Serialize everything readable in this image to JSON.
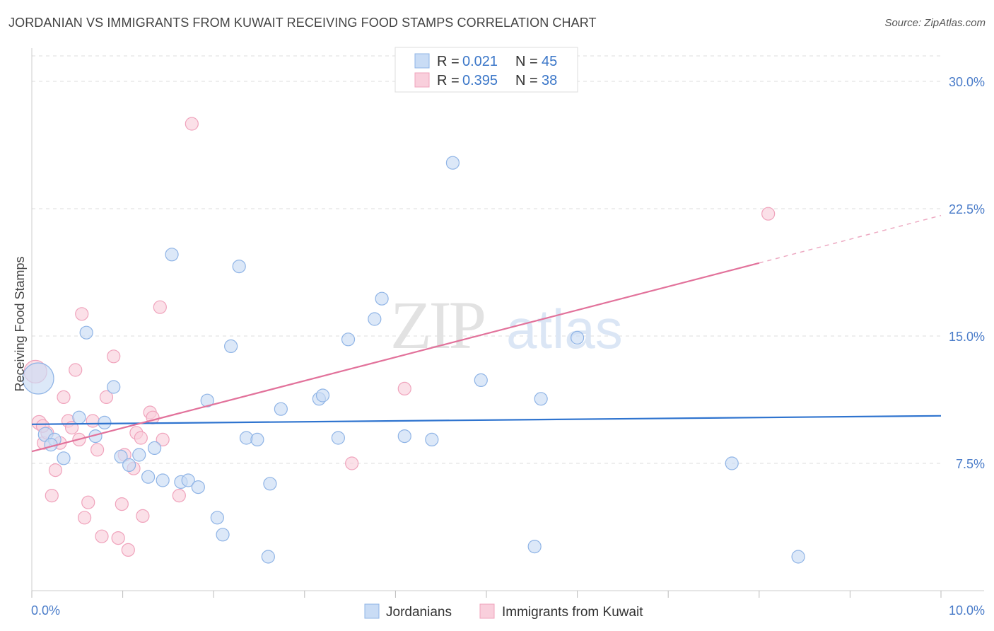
{
  "title": "JORDANIAN VS IMMIGRANTS FROM KUWAIT RECEIVING FOOD STAMPS CORRELATION CHART",
  "source": "Source: ZipAtlas.com",
  "watermark": {
    "zip": "ZIP",
    "atlas": "atlas"
  },
  "colors": {
    "blue_fill": "#c9dcf5",
    "blue_stroke": "#8fb4e6",
    "blue_line": "#2f74cf",
    "pink_fill": "#f9cfdc",
    "pink_stroke": "#f0a3bc",
    "pink_line": "#e2729b",
    "grid": "#dddddd",
    "tick_label": "#4a7cc9"
  },
  "legend": {
    "rows": [
      {
        "r_label": "R = ",
        "r_value": "0.021",
        "n_label": "N = ",
        "n_value": "45"
      },
      {
        "r_label": "R = ",
        "r_value": "0.395",
        "n_label": "N = ",
        "n_value": "38"
      }
    ]
  },
  "chart_data": {
    "type": "scatter",
    "xlabel": "",
    "ylabel": "Receiving Food Stamps",
    "xlim": [
      0,
      10
    ],
    "ylim": [
      0,
      31.5
    ],
    "x_tick_labels": [
      "0.0%",
      "10.0%"
    ],
    "y_ticks": [
      7.5,
      15.0,
      22.5,
      30.0
    ],
    "y_tick_labels": [
      "7.5%",
      "15.0%",
      "22.5%",
      "30.0%"
    ],
    "grid": true,
    "legend_position": "top-center",
    "series": [
      {
        "name": "Jordanians",
        "color": "#c9dcf5",
        "trend": {
          "x": [
            0,
            10
          ],
          "y": [
            9.8,
            10.3
          ]
        },
        "points": [
          [
            0.07,
            12.5,
            22
          ],
          [
            0.15,
            9.2,
            10
          ],
          [
            0.25,
            8.9,
            9
          ],
          [
            0.35,
            7.8,
            9
          ],
          [
            0.52,
            10.2,
            9
          ],
          [
            0.6,
            15.2,
            9
          ],
          [
            0.7,
            9.1,
            9
          ],
          [
            0.8,
            9.9,
            9
          ],
          [
            0.9,
            12.0,
            9
          ],
          [
            0.98,
            7.9,
            9
          ],
          [
            1.07,
            7.4,
            9
          ],
          [
            1.18,
            8.0,
            9
          ],
          [
            1.28,
            6.7,
            9
          ],
          [
            1.35,
            8.4,
            9
          ],
          [
            1.44,
            6.5,
            9
          ],
          [
            1.54,
            19.8,
            9
          ],
          [
            1.64,
            6.4,
            9
          ],
          [
            1.72,
            6.5,
            9
          ],
          [
            1.83,
            6.1,
            9
          ],
          [
            1.93,
            11.2,
            9
          ],
          [
            2.04,
            4.3,
            9
          ],
          [
            2.1,
            3.3,
            9
          ],
          [
            2.19,
            14.4,
            9
          ],
          [
            2.28,
            19.1,
            9
          ],
          [
            2.36,
            9.0,
            9
          ],
          [
            2.48,
            8.9,
            9
          ],
          [
            2.6,
            2.0,
            9
          ],
          [
            2.62,
            6.3,
            9
          ],
          [
            2.74,
            10.7,
            9
          ],
          [
            3.16,
            11.3,
            9
          ],
          [
            3.2,
            11.5,
            9
          ],
          [
            3.37,
            9.0,
            9
          ],
          [
            3.48,
            14.8,
            9
          ],
          [
            3.77,
            16.0,
            9
          ],
          [
            3.85,
            17.2,
            9
          ],
          [
            4.1,
            9.1,
            9
          ],
          [
            4.4,
            8.9,
            9
          ],
          [
            4.63,
            25.2,
            9
          ],
          [
            4.94,
            12.4,
            9
          ],
          [
            5.53,
            2.6,
            9
          ],
          [
            5.6,
            11.3,
            9
          ],
          [
            6.0,
            14.9,
            9
          ],
          [
            7.7,
            7.5,
            9
          ],
          [
            8.43,
            2.0,
            9
          ],
          [
            0.21,
            8.6,
            9
          ]
        ]
      },
      {
        "name": "Immigrants from Kuwait",
        "color": "#f9cfdc",
        "trend": {
          "x": [
            0,
            8.0
          ],
          "y": [
            8.2,
            19.3
          ],
          "dashed_to": [
            10,
            22.1
          ]
        },
        "points": [
          [
            0.04,
            12.9,
            16
          ],
          [
            0.08,
            9.9,
            10
          ],
          [
            0.13,
            8.7,
            9
          ],
          [
            0.17,
            9.3,
            9
          ],
          [
            0.22,
            5.6,
            9
          ],
          [
            0.26,
            7.1,
            9
          ],
          [
            0.31,
            8.7,
            9
          ],
          [
            0.35,
            11.4,
            9
          ],
          [
            0.4,
            10.0,
            9
          ],
          [
            0.44,
            9.6,
            9
          ],
          [
            0.48,
            13.0,
            9
          ],
          [
            0.52,
            8.9,
            9
          ],
          [
            0.55,
            16.3,
            9
          ],
          [
            0.58,
            4.3,
            9
          ],
          [
            0.62,
            5.2,
            9
          ],
          [
            0.67,
            10.0,
            9
          ],
          [
            0.72,
            8.3,
            9
          ],
          [
            0.77,
            3.2,
            9
          ],
          [
            0.82,
            11.4,
            9
          ],
          [
            0.9,
            13.8,
            9
          ],
          [
            0.95,
            3.1,
            9
          ],
          [
            0.99,
            5.1,
            9
          ],
          [
            1.02,
            8.0,
            9
          ],
          [
            1.06,
            2.4,
            9
          ],
          [
            1.12,
            7.2,
            9
          ],
          [
            1.15,
            9.3,
            9
          ],
          [
            1.2,
            9.0,
            9
          ],
          [
            1.22,
            4.4,
            9
          ],
          [
            1.3,
            10.5,
            9
          ],
          [
            1.33,
            10.2,
            9
          ],
          [
            1.41,
            16.7,
            9
          ],
          [
            1.44,
            8.9,
            9
          ],
          [
            1.62,
            5.6,
            9
          ],
          [
            1.76,
            27.5,
            9
          ],
          [
            3.52,
            7.5,
            9
          ],
          [
            4.1,
            11.9,
            9
          ],
          [
            8.1,
            22.2,
            9
          ],
          [
            0.12,
            9.7,
            9
          ]
        ]
      }
    ]
  }
}
